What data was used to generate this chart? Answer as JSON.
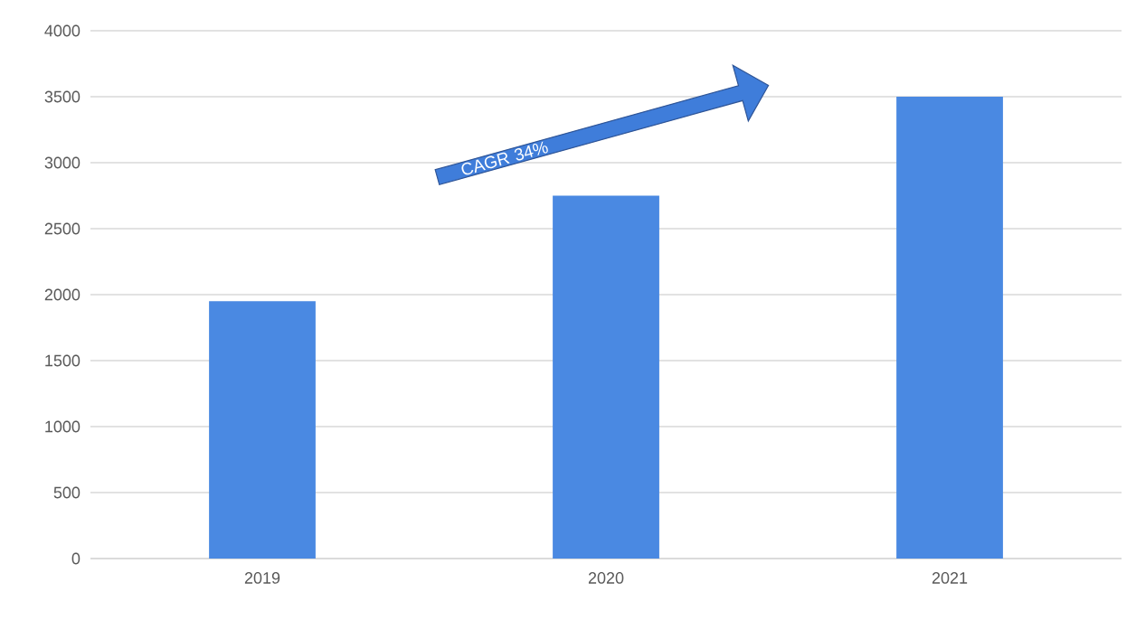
{
  "chart_data": {
    "type": "bar",
    "categories": [
      "2019",
      "2020",
      "2021"
    ],
    "values": [
      1950,
      2750,
      3500
    ],
    "color": "#4a89e2",
    "ylim": [
      0,
      4000
    ],
    "yticks": [
      0,
      500,
      1000,
      1500,
      2000,
      2500,
      3000,
      3500,
      4000
    ],
    "grid": "y",
    "annotations": [
      "CAGR 34%"
    ]
  }
}
